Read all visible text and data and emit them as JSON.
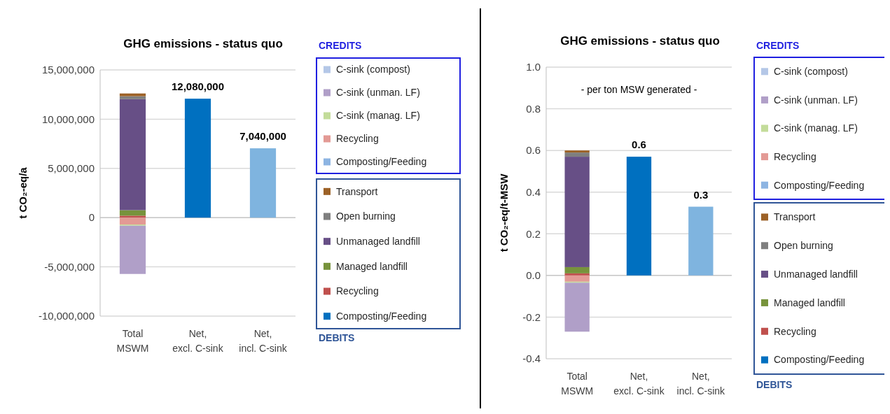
{
  "chart_data": [
    {
      "type": "bar",
      "title": "GHG emissions - status quo",
      "ylabel": "t CO₂-eq/a",
      "categories": [
        "Total MSWM",
        "Net, excl. C-sink",
        "Net, incl. C-sink"
      ],
      "stacked": true,
      "legend": "right",
      "grid": "y",
      "annotations": [
        "CREDITS",
        "DEBITS"
      ],
      "ylim": [
        -10000000,
        15000000
      ],
      "yticks": [
        {
          "value": -10000000,
          "label": "-10,000,000"
        },
        {
          "value": -5000000,
          "label": "-5,000,000"
        },
        {
          "value": 0,
          "label": "0"
        },
        {
          "value": 5000000,
          "label": "5,000,000"
        },
        {
          "value": 10000000,
          "label": "10,000,000"
        },
        {
          "value": 15000000,
          "label": "15,000,000"
        }
      ],
      "series": [
        {
          "color": "#0070c0",
          "values": [
            null,
            12080000,
            null
          ],
          "value_labels": [
            null,
            "12,080,000",
            null
          ]
        },
        {
          "color": "#7fb4df",
          "values": [
            null,
            null,
            7040000
          ],
          "value_labels": [
            null,
            null,
            "7,040,000"
          ]
        },
        {
          "name": "Composting/Feeding",
          "color": "#0070c0",
          "values": [
            null,
            null,
            null
          ]
        },
        {
          "name": "Recycling",
          "color": "#c0504d",
          "values": [
            200000,
            null,
            null
          ]
        },
        {
          "name": "Managed landfill",
          "color": "#77933c",
          "values": [
            560000,
            null,
            null
          ]
        },
        {
          "name": "Unmanaged landfill",
          "color": "#674f86",
          "values": [
            11270000,
            null,
            null
          ]
        },
        {
          "name": "Open burning",
          "color": "#7f7f7f",
          "values": [
            300000,
            null,
            null
          ]
        },
        {
          "name": "Transport",
          "color": "#9c6126",
          "values": [
            280000,
            null,
            null
          ]
        },
        {
          "name": "Composting/Feeding",
          "color": "#8db4e2",
          "values": [
            null,
            null,
            null
          ]
        },
        {
          "name": "Recycling",
          "color": "#e39a95",
          "values": [
            -700000,
            null,
            null
          ]
        },
        {
          "name": "C-sink (manag. LF)",
          "color": "#c3dc9a",
          "values": [
            -120000,
            null,
            null
          ]
        },
        {
          "name": "C-sink (unman. LF)",
          "color": "#b09fc8",
          "values": [
            -4900000,
            null,
            null
          ]
        },
        {
          "name": "C-sink (compost)",
          "color": "#b4c7e7",
          "values": [
            null,
            null,
            null
          ]
        }
      ]
    },
    {
      "type": "bar",
      "title": "GHG emissions - status quo",
      "subtitle": "- per ton MSW generated -",
      "ylabel": "t CO₂-eq/t-MSW",
      "categories": [
        "Total MSWM",
        "Net, excl. C-sink",
        "Net, incl. C-sink"
      ],
      "stacked": true,
      "legend": "right",
      "grid": "y",
      "annotations": [
        "CREDITS",
        "DEBITS"
      ],
      "ylim": [
        -0.4,
        1.0
      ],
      "yticks": [
        {
          "value": -0.4,
          "label": "-0.4"
        },
        {
          "value": -0.2,
          "label": "-0.2"
        },
        {
          "value": 0,
          "label": "0.0"
        },
        {
          "value": 0.2,
          "label": "0.2"
        },
        {
          "value": 0.4,
          "label": "0.4"
        },
        {
          "value": 0.6,
          "label": "0.6"
        },
        {
          "value": 0.8,
          "label": "0.8"
        },
        {
          "value": 1.0,
          "label": "1.0"
        }
      ],
      "series": [
        {
          "color": "#0070c0",
          "values": [
            null,
            0.57,
            null
          ],
          "value_labels": [
            null,
            "0.6",
            null
          ]
        },
        {
          "color": "#7fb4df",
          "values": [
            null,
            null,
            0.33
          ],
          "value_labels": [
            null,
            null,
            "0.3"
          ]
        },
        {
          "name": "Composting/Feeding",
          "color": "#0070c0",
          "values": [
            null,
            null,
            null
          ]
        },
        {
          "name": "Recycling",
          "color": "#c0504d",
          "values": [
            0.01,
            null,
            null
          ]
        },
        {
          "name": "Managed landfill",
          "color": "#77933c",
          "values": [
            0.03,
            null,
            null
          ]
        },
        {
          "name": "Unmanaged landfill",
          "color": "#674f86",
          "values": [
            0.53,
            null,
            null
          ]
        },
        {
          "name": "Open burning",
          "color": "#7f7f7f",
          "values": [
            0.02,
            null,
            null
          ]
        },
        {
          "name": "Transport",
          "color": "#9c6126",
          "values": [
            0.01,
            null,
            null
          ]
        },
        {
          "name": "Composting/Feeding",
          "color": "#8db4e2",
          "values": [
            null,
            null,
            null
          ]
        },
        {
          "name": "Recycling",
          "color": "#e39a95",
          "values": [
            -0.03,
            null,
            null
          ]
        },
        {
          "name": "C-sink (manag. LF)",
          "color": "#c3dc9a",
          "values": [
            -0.005,
            null,
            null
          ]
        },
        {
          "name": "C-sink (unman. LF)",
          "color": "#b09fc8",
          "values": [
            -0.235,
            null,
            null
          ]
        },
        {
          "name": "C-sink (compost)",
          "color": "#b4c7e7",
          "values": [
            null,
            null,
            null
          ]
        }
      ]
    }
  ]
}
